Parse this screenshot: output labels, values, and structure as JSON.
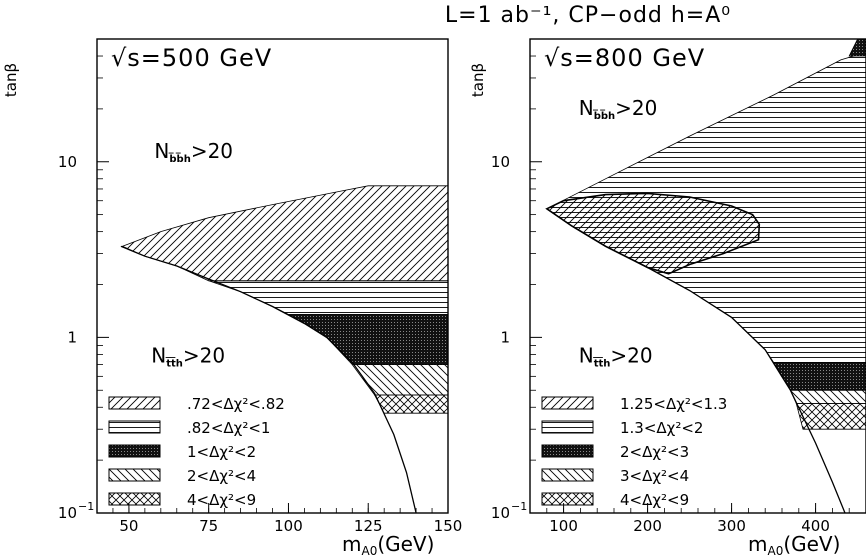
{
  "figure": {
    "title": "L=1 ab⁻¹, CP−odd h=A⁰",
    "ylabel": "tanβ",
    "xlabel": "m",
    "xlabel_sub": "A0",
    "xlabel_unit": "(GeV)",
    "y_ticks": [
      {
        "label": "10",
        "value": 10,
        "exp": ""
      },
      {
        "label": "1",
        "value": 1,
        "exp": ""
      },
      {
        "label": "10",
        "value": 0.1,
        "exp": "−1"
      }
    ]
  },
  "chart_data": [
    {
      "type": "area",
      "panel": "left",
      "title": "√s=500 GeV",
      "xlim": [
        40,
        150
      ],
      "ylim": [
        0.1,
        50
      ],
      "yscale": "log",
      "x_ticks": [
        50,
        75,
        100,
        125,
        150
      ],
      "annotations": [
        {
          "name": "bbh",
          "main": "N",
          "sub": "b̅b̅h",
          "tail": ">20",
          "x": 58,
          "y": 10.5
        },
        {
          "name": "tth",
          "main": "N",
          "sub": "t̅t̅h",
          "tail": ">20",
          "x": 57,
          "y": 0.72
        }
      ],
      "boundary": [
        [
          47.5,
          3.3
        ],
        [
          55,
          2.9
        ],
        [
          65,
          2.55
        ],
        [
          75,
          2.15
        ],
        [
          85,
          1.82
        ],
        [
          95,
          1.5
        ],
        [
          105,
          1.2
        ],
        [
          112,
          1.0
        ],
        [
          120,
          0.72
        ],
        [
          127,
          0.48
        ],
        [
          133,
          0.28
        ],
        [
          137,
          0.17
        ],
        [
          140,
          0.1
        ]
      ],
      "regions": [
        {
          "label": ".72<Δχ²<.82",
          "pattern": "diag-up",
          "poly": [
            [
              48,
              3.3
            ],
            [
              60,
              4.0
            ],
            [
              75,
              4.8
            ],
            [
              95,
              5.7
            ],
            [
              118,
              6.9
            ],
            [
              125,
              7.3
            ],
            [
              140,
              7.3
            ],
            [
              150,
              7.3
            ],
            [
              150,
              2.1
            ],
            [
              75,
              2.1
            ],
            [
              65,
              2.55
            ],
            [
              55,
              2.9
            ]
          ]
        },
        {
          "label": ".82<Δχ²<1",
          "pattern": "horiz",
          "poly": [
            [
              75,
              2.1
            ],
            [
              150,
              2.1
            ],
            [
              150,
              1.35
            ],
            [
              100,
              1.35
            ],
            [
              95,
              1.5
            ],
            [
              85,
              1.82
            ]
          ]
        },
        {
          "label": "1<Δχ²<2",
          "pattern": "dense",
          "poly": [
            [
              100,
              1.35
            ],
            [
              150,
              1.35
            ],
            [
              150,
              0.7
            ],
            [
              120,
              0.7
            ],
            [
              112,
              1.0
            ],
            [
              105,
              1.2
            ]
          ]
        },
        {
          "label": "2<Δχ²<4",
          "pattern": "diag-down",
          "poly": [
            [
              120,
              0.7
            ],
            [
              150,
              0.7
            ],
            [
              150,
              0.47
            ],
            [
              127,
              0.47
            ]
          ]
        },
        {
          "label": "4<Δχ²<9",
          "pattern": "cross",
          "poly": [
            [
              127,
              0.47
            ],
            [
              150,
              0.47
            ],
            [
              150,
              0.37
            ],
            [
              130,
              0.37
            ]
          ]
        }
      ]
    },
    {
      "type": "area",
      "panel": "right",
      "title": "√s=800 GeV",
      "xlim": [
        60,
        460
      ],
      "ylim": [
        0.1,
        50
      ],
      "yscale": "log",
      "x_ticks": [
        100,
        200,
        300,
        400
      ],
      "annotations": [
        {
          "name": "bbh",
          "main": "N",
          "sub": "b̅b̅h",
          "tail": ">20",
          "x": 118,
          "y": 18.5
        },
        {
          "name": "tth",
          "main": "N",
          "sub": "t̅t̅h",
          "tail": ">20",
          "x": 118,
          "y": 0.72
        }
      ],
      "boundary": [
        [
          80,
          5.4
        ],
        [
          110,
          4.3
        ],
        [
          150,
          3.3
        ],
        [
          200,
          2.5
        ],
        [
          250,
          1.85
        ],
        [
          300,
          1.3
        ],
        [
          340,
          0.85
        ],
        [
          370,
          0.5
        ],
        [
          400,
          0.25
        ],
        [
          420,
          0.15
        ],
        [
          435,
          0.1
        ]
      ],
      "regions": [
        {
          "label": "1.25<Δχ²<1.3",
          "pattern": "diag-up",
          "poly": [
            [
              80,
              5.4
            ],
            [
              100,
              6.0
            ],
            [
              150,
              6.5
            ],
            [
              200,
              6.6
            ],
            [
              250,
              6.3
            ],
            [
              300,
              5.6
            ],
            [
              325,
              5.0
            ],
            [
              333,
              4.4
            ],
            [
              332,
              3.6
            ],
            [
              290,
              3.0
            ],
            [
              250,
              2.6
            ],
            [
              225,
              2.3
            ],
            [
              200,
              2.5
            ],
            [
              150,
              3.3
            ],
            [
              110,
              4.3
            ]
          ]
        },
        {
          "label": "1.3<Δχ²<2",
          "pattern": "horiz",
          "poly": [
            [
              80,
              5.4
            ],
            [
              150,
              8.0
            ],
            [
              250,
              14.0
            ],
            [
              350,
              24.0
            ],
            [
              430,
              38.0
            ],
            [
              460,
              42.0
            ],
            [
              460,
              0.72
            ],
            [
              350,
              0.72
            ],
            [
              340,
              0.85
            ],
            [
              300,
              1.3
            ],
            [
              250,
              1.85
            ],
            [
              200,
              2.5
            ],
            [
              150,
              3.3
            ],
            [
              110,
              4.3
            ]
          ]
        },
        {
          "label": "2<Δχ²<3",
          "pattern": "dense",
          "poly": [
            [
              350,
              0.72
            ],
            [
              460,
              0.72
            ],
            [
              460,
              0.5
            ],
            [
              370,
              0.5
            ]
          ]
        },
        {
          "label": "3<Δχ²<4",
          "pattern": "diag-down",
          "poly": [
            [
              370,
              0.5
            ],
            [
              460,
              0.5
            ],
            [
              460,
              0.42
            ],
            [
              377,
              0.42
            ]
          ]
        },
        {
          "label": "4<Δχ²<9",
          "pattern": "cross",
          "poly": [
            [
              377,
              0.42
            ],
            [
              460,
              0.42
            ],
            [
              460,
              0.3
            ],
            [
              385,
              0.3
            ]
          ]
        },
        {
          "label": "",
          "pattern": "dense",
          "poly": [
            [
              440,
              40.0
            ],
            [
              460,
              40.0
            ],
            [
              460,
              50.0
            ],
            [
              450,
              50.0
            ]
          ]
        }
      ]
    }
  ]
}
